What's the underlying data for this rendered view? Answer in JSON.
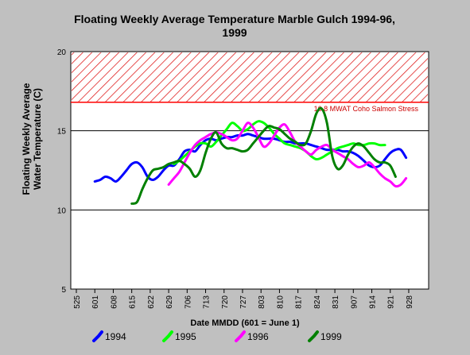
{
  "chart_data": {
    "type": "line",
    "title_line1": "Floating Weekly Average Temperature Marble Gulch 1994-96,",
    "title_line2": "1999",
    "ylabel_line1": "Floating Weekly Average",
    "ylabel_line2": "Water Temperature (C)",
    "xlabel": "Date MMDD (601 = June 1)",
    "ylim": [
      5,
      20
    ],
    "yticks": [
      "5",
      "10",
      "15",
      "20"
    ],
    "xticks": [
      "525",
      "601",
      "608",
      "615",
      "622",
      "629",
      "706",
      "713",
      "720",
      "727",
      "803",
      "810",
      "817",
      "824",
      "831",
      "907",
      "914",
      "921",
      "928"
    ],
    "grid": "horizontal",
    "threshold": {
      "value": 16.8,
      "label": "16.8 MWAT Coho Salmon Stress",
      "color": "#ff0000"
    },
    "legend_position": "bottom",
    "series": [
      {
        "name": "1994",
        "color": "#0000ff",
        "x": [
          0,
          2,
          4,
          6,
          8,
          10,
          12,
          14,
          16,
          18,
          20,
          22,
          24,
          26,
          28,
          30,
          32,
          34,
          36,
          38,
          40,
          42,
          44,
          46,
          48,
          50,
          52,
          54,
          56,
          58,
          60,
          62,
          64,
          66,
          68,
          70,
          72,
          74,
          76,
          78,
          80,
          82,
          84,
          86,
          88,
          90,
          92,
          94,
          96,
          98,
          100,
          102,
          104,
          106,
          108,
          110,
          112,
          114,
          116,
          118
        ],
        "values": [
          11.8,
          11.9,
          12.1,
          12.0,
          11.8,
          12.1,
          12.5,
          12.9,
          13.0,
          12.7,
          12.1,
          11.9,
          12.1,
          12.5,
          12.8,
          12.8,
          13.2,
          13.7,
          13.8,
          13.7,
          14.1,
          14.4,
          14.5,
          14.4,
          14.5,
          14.6,
          14.6,
          14.7,
          14.7,
          14.8,
          14.7,
          14.6,
          14.5,
          14.5,
          14.5,
          14.4,
          14.3,
          14.3,
          14.2,
          14.2,
          14.2,
          14.1,
          14.0,
          13.9,
          13.8,
          13.8,
          13.8,
          13.7,
          13.7,
          13.6,
          13.4,
          13.1,
          12.8,
          12.7,
          12.8,
          13.2,
          13.6,
          13.8,
          13.8,
          13.3
        ]
      },
      {
        "name": "1995",
        "color": "#00ff00",
        "x": [
          30,
          32,
          34,
          36,
          38,
          40,
          42,
          44,
          46,
          48,
          50,
          52,
          54,
          56,
          58,
          60,
          62,
          64,
          66,
          68,
          70,
          72,
          74,
          76,
          78,
          80,
          82,
          84,
          86,
          88,
          90,
          92,
          94,
          96,
          98,
          100,
          102,
          104,
          106,
          108,
          110
        ],
        "values": [
          12.9,
          13.1,
          13.4,
          13.7,
          14.0,
          14.2,
          14.2,
          14.0,
          14.3,
          14.7,
          15.1,
          15.5,
          15.3,
          15.0,
          15.1,
          15.4,
          15.6,
          15.5,
          15.2,
          14.8,
          14.5,
          14.2,
          14.1,
          14.0,
          13.9,
          13.7,
          13.4,
          13.2,
          13.3,
          13.5,
          13.7,
          13.9,
          14.0,
          14.1,
          14.2,
          14.1,
          14.1,
          14.2,
          14.2,
          14.1,
          14.1
        ]
      },
      {
        "name": "1996",
        "color": "#ff00ff",
        "x": [
          28,
          30,
          32,
          34,
          36,
          38,
          40,
          42,
          44,
          46,
          48,
          50,
          52,
          54,
          56,
          58,
          60,
          62,
          64,
          66,
          68,
          70,
          72,
          74,
          76,
          78,
          80,
          82,
          84,
          86,
          88,
          90,
          92,
          94,
          96,
          98,
          100,
          102,
          104,
          106,
          108,
          110,
          112,
          114,
          116,
          118
        ],
        "values": [
          11.6,
          12.0,
          12.4,
          13.0,
          13.6,
          14.1,
          14.4,
          14.6,
          14.8,
          14.9,
          14.8,
          14.6,
          14.4,
          14.5,
          15.0,
          15.5,
          15.2,
          14.6,
          14.0,
          14.2,
          14.7,
          15.2,
          15.4,
          14.9,
          14.3,
          14.0,
          13.7,
          13.5,
          13.8,
          14.0,
          14.1,
          13.8,
          13.6,
          13.4,
          13.2,
          12.9,
          12.7,
          12.8,
          13.0,
          12.7,
          12.3,
          12.0,
          11.8,
          11.5,
          11.6,
          12.0
        ]
      },
      {
        "name": "1999",
        "color": "#008000",
        "x": [
          14,
          16,
          18,
          20,
          22,
          24,
          26,
          28,
          30,
          32,
          34,
          36,
          38,
          40,
          42,
          44,
          46,
          48,
          50,
          52,
          54,
          56,
          58,
          60,
          62,
          64,
          66,
          68,
          70,
          72,
          74,
          76,
          78,
          80,
          82,
          84,
          86,
          88,
          90,
          92,
          94,
          96,
          98,
          100,
          102,
          104,
          106,
          108,
          110,
          112,
          114
        ],
        "values": [
          10.4,
          10.5,
          11.3,
          12.0,
          12.5,
          12.6,
          12.7,
          12.9,
          13.0,
          13.1,
          12.9,
          12.6,
          12.1,
          12.5,
          13.6,
          14.5,
          14.9,
          14.2,
          13.9,
          13.9,
          13.8,
          13.7,
          13.8,
          14.2,
          14.6,
          15.0,
          15.3,
          15.2,
          15.1,
          14.8,
          14.5,
          14.3,
          14.1,
          14.2,
          15.0,
          16.1,
          16.4,
          15.5,
          13.4,
          12.6,
          12.8,
          13.5,
          14.0,
          14.2,
          14.0,
          13.6,
          13.2,
          13.0,
          13.0,
          12.8,
          12.1
        ]
      }
    ]
  }
}
